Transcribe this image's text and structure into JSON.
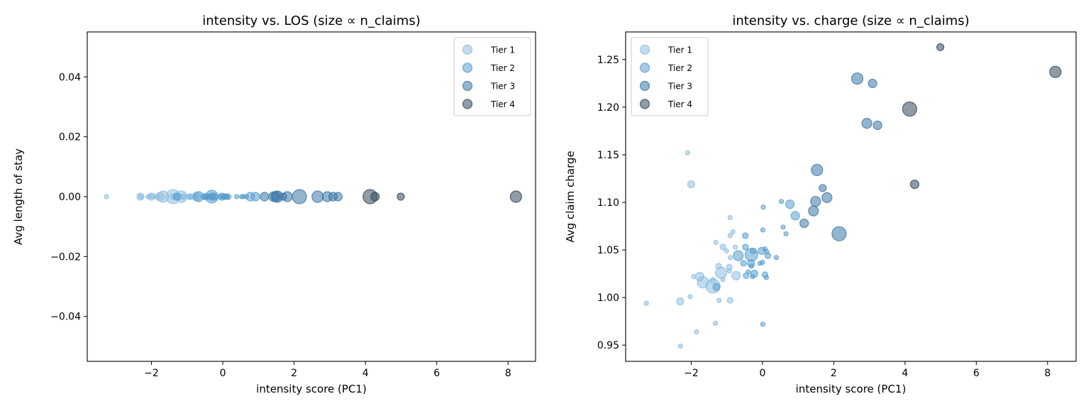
{
  "chart_data": [
    {
      "type": "scatter",
      "title": "intensity vs. LOS (size ∝ n_claims)",
      "xlabel": "intensity score (PC1)",
      "ylabel": "Avg length of stay",
      "xlim": [
        -3.8,
        8.77
      ],
      "ylim": [
        -0.055,
        0.055
      ],
      "xticks": [
        -2,
        0,
        2,
        4,
        6,
        8
      ],
      "xtick_labels": [
        "−2",
        "0",
        "2",
        "4",
        "6",
        "8"
      ],
      "yticks": [
        -0.04,
        -0.02,
        0,
        0.02,
        0.04
      ],
      "ytick_labels": [
        "−0.04",
        "−0.02",
        "0.00",
        "0.02",
        "0.04"
      ],
      "grid": false,
      "legend_placement": "upper-right",
      "y_source": "los"
    },
    {
      "type": "scatter",
      "title": "intensity vs. charge (size ∝ n_claims)",
      "xlabel": "intensity score (PC1)",
      "ylabel": "Avg claim charge",
      "xlim": [
        -3.84,
        8.8
      ],
      "ylim": [
        0.933,
        1.279
      ],
      "xticks": [
        -2,
        0,
        2,
        4,
        6,
        8
      ],
      "xtick_labels": [
        "−2",
        "0",
        "2",
        "4",
        "6",
        "8"
      ],
      "yticks": [
        0.95,
        1.0,
        1.05,
        1.1,
        1.15,
        1.2,
        1.25
      ],
      "ytick_labels": [
        "0.95",
        "1.00",
        "1.05",
        "1.10",
        "1.15",
        "1.20",
        "1.25"
      ],
      "grid": false,
      "legend_placement": "upper-left",
      "y_source": "charge"
    }
  ],
  "series": [
    {
      "name": "Tier 1",
      "color": "#8fbfe0",
      "points": [
        [
          -3.26,
          0.994,
          3
        ],
        [
          -2.31,
          0.996,
          5
        ],
        [
          -2.3,
          0.949,
          3
        ],
        [
          -1.85,
          0.964,
          3
        ],
        [
          -2.03,
          1.001,
          3
        ],
        [
          -1.93,
          1.022,
          3
        ],
        [
          -1.76,
          1.022,
          6
        ],
        [
          -1.67,
          1.016,
          8
        ],
        [
          -1.39,
          1.012,
          10
        ],
        [
          -1.39,
          1.018,
          4
        ],
        [
          -1.22,
          0.997,
          3
        ],
        [
          -1.32,
          0.973,
          3
        ],
        [
          -1.11,
          1.019,
          3
        ],
        [
          -1.16,
          1.026,
          8
        ],
        [
          -1.23,
          1.033,
          4
        ],
        [
          -0.91,
          0.997,
          4
        ],
        [
          -0.74,
          1.023,
          6
        ],
        [
          -0.93,
          1.032,
          4
        ],
        [
          -0.93,
          1.028,
          3
        ],
        [
          -1.31,
          1.058,
          3
        ],
        [
          -1.11,
          1.053,
          4
        ],
        [
          -1.01,
          1.049,
          3
        ],
        [
          -0.91,
          1.065,
          3
        ],
        [
          -0.83,
          1.069,
          3
        ],
        [
          -0.91,
          1.084,
          3
        ],
        [
          -0.9,
          1.042,
          3
        ],
        [
          -0.76,
          1.053,
          3
        ],
        [
          -2.1,
          1.152,
          3
        ],
        [
          -2.0,
          1.119,
          5
        ]
      ]
    },
    {
      "name": "Tier 2",
      "color": "#5a9fcf",
      "points": [
        [
          -1.29,
          1.011,
          5
        ],
        [
          -0.68,
          1.044,
          7
        ],
        [
          -0.48,
          1.065,
          4
        ],
        [
          -0.48,
          1.053,
          4
        ],
        [
          -0.53,
          1.036,
          4
        ],
        [
          -0.46,
          1.023,
          4
        ],
        [
          -0.4,
          1.027,
          3
        ],
        [
          -0.31,
          1.045,
          9
        ],
        [
          -0.26,
          1.049,
          4
        ],
        [
          -0.32,
          1.036,
          5
        ],
        [
          -0.31,
          1.033,
          3
        ],
        [
          -0.23,
          1.025,
          5
        ],
        [
          -0.28,
          1.022,
          3
        ],
        [
          -0.02,
          1.049,
          5
        ],
        [
          0.07,
          1.051,
          3
        ],
        [
          0.12,
          1.048,
          3
        ],
        [
          0.15,
          1.044,
          4
        ],
        [
          -0.07,
          1.036,
          3
        ],
        [
          0.0,
          1.037,
          3
        ],
        [
          0.07,
          1.024,
          4
        ],
        [
          0.11,
          1.021,
          3
        ],
        [
          0.01,
          1.071,
          3
        ],
        [
          0.02,
          1.095,
          3
        ],
        [
          0.01,
          0.972,
          3
        ],
        [
          0.39,
          1.042,
          3
        ],
        [
          0.53,
          1.101,
          3
        ],
        [
          0.77,
          1.098,
          6
        ],
        [
          0.58,
          1.074,
          3
        ],
        [
          0.66,
          1.067,
          3
        ],
        [
          0.92,
          1.086,
          6
        ]
      ]
    },
    {
      "name": "Tier 3",
      "color": "#3d78a8",
      "points": [
        [
          1.17,
          1.078,
          6
        ],
        [
          1.43,
          1.091,
          7
        ],
        [
          1.49,
          1.101,
          7
        ],
        [
          1.53,
          1.134,
          8
        ],
        [
          1.69,
          1.115,
          5
        ],
        [
          1.81,
          1.105,
          7
        ],
        [
          2.15,
          1.067,
          10
        ],
        [
          2.66,
          1.23,
          8
        ],
        [
          3.09,
          1.225,
          6
        ],
        [
          2.93,
          1.183,
          7
        ],
        [
          3.23,
          1.181,
          6
        ]
      ]
    },
    {
      "name": "Tier 4",
      "color": "#34495c",
      "points": [
        [
          4.13,
          1.198,
          10
        ],
        [
          4.27,
          1.119,
          6
        ],
        [
          4.99,
          1.263,
          5
        ],
        [
          8.22,
          1.237,
          8
        ]
      ]
    }
  ],
  "point_fields": [
    "intensity_score",
    "avg_claim_charge",
    "relative_marker_size_n_claims"
  ],
  "los_value_all_points": 0
}
